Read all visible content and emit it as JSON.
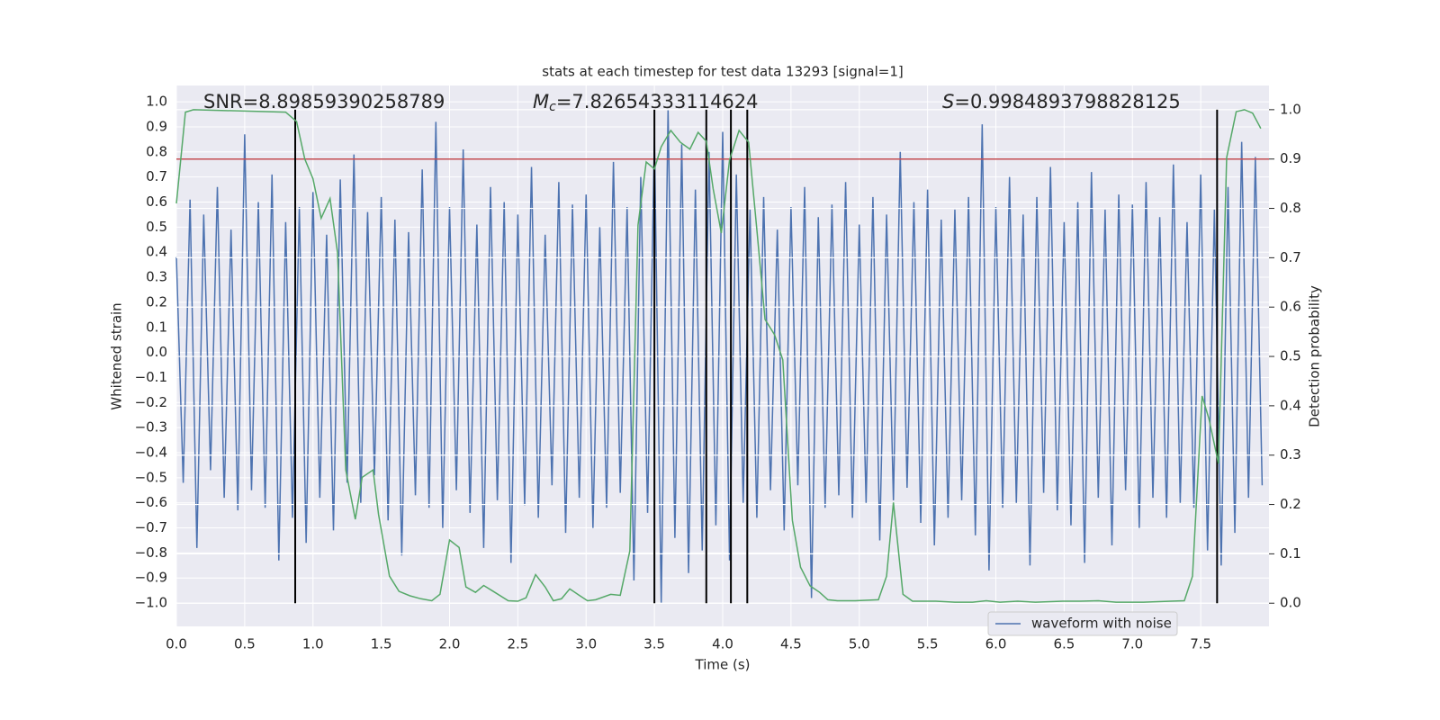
{
  "chart_data": {
    "type": "line",
    "title": "stats at each timestep for test data 13293 [signal=1]",
    "x_label": "Time (s)",
    "y_label": "Whitened strain",
    "y2_label": "Detection probability",
    "annotations": [
      {
        "text": "SNR=8.89859390258789"
      },
      {
        "symbol": "M",
        "subscript": "c",
        "text": "=7.82654333114624"
      },
      {
        "symbol": "S",
        "text": "=0.9984893798828125"
      }
    ],
    "xlim": [
      0,
      8.0
    ],
    "ylim": [
      -1.093,
      1.065
    ],
    "y2lim": [
      -0.047,
      1.049
    ],
    "xticks": [
      {
        "value": 0,
        "label": "0.0"
      },
      0.5,
      {
        "value": 1,
        "label": "1.0"
      },
      1.5,
      {
        "value": 2,
        "label": "2.0"
      },
      2.5,
      {
        "value": 3,
        "label": "3.0"
      },
      3.5,
      {
        "value": 4,
        "label": "4.0"
      },
      4.5,
      {
        "value": 5,
        "label": "5.0"
      },
      5.5,
      {
        "value": 6,
        "label": "6.0"
      },
      6.5,
      {
        "value": 7,
        "label": "7.0"
      },
      7.5
    ],
    "yticks": [
      {
        "value": -1,
        "label": "−1.0"
      },
      {
        "value": -0.9,
        "label": "−0.9"
      },
      {
        "value": -0.8,
        "label": "−0.8"
      },
      {
        "value": -0.7,
        "label": "−0.7"
      },
      {
        "value": -0.6,
        "label": "−0.6"
      },
      {
        "value": -0.5,
        "label": "−0.5"
      },
      {
        "value": -0.4,
        "label": "−0.4"
      },
      {
        "value": -0.3,
        "label": "−0.3"
      },
      {
        "value": -0.2,
        "label": "−0.2"
      },
      {
        "value": -0.1,
        "label": "−0.1"
      },
      {
        "value": 0,
        "label": "0.0"
      },
      0.1,
      0.2,
      0.3,
      0.4,
      0.5,
      0.6,
      0.7,
      0.8,
      0.9,
      {
        "value": 1,
        "label": "1.0"
      }
    ],
    "y2ticks": [
      {
        "value": 0,
        "label": "0.0"
      },
      0.1,
      0.2,
      0.3,
      0.4,
      0.5,
      0.6,
      0.7,
      0.8,
      0.9,
      {
        "value": 1,
        "label": "1.0"
      }
    ],
    "grid": true,
    "legend": "lower right",
    "series": [
      {
        "name": "waveform with noise",
        "color": "#4c72b0",
        "x": [
          0,
          0.05,
          0.1,
          0.15,
          0.2,
          0.25,
          0.3,
          0.35,
          0.4,
          0.45,
          0.5,
          0.55,
          0.6,
          0.65,
          0.7,
          0.75,
          0.8,
          0.85,
          0.9,
          0.95,
          1,
          1.05,
          1.1,
          1.15,
          1.2,
          1.25,
          1.3,
          1.35,
          1.4,
          1.45,
          1.5,
          1.55,
          1.6,
          1.65,
          1.7,
          1.75,
          1.8,
          1.85,
          1.9,
          1.95,
          2,
          2.05,
          2.1,
          2.15,
          2.2,
          2.25,
          2.3,
          2.35,
          2.4,
          2.45,
          2.5,
          2.55,
          2.6,
          2.65,
          2.7,
          2.75,
          2.8,
          2.85,
          2.9,
          2.95,
          3,
          3.05,
          3.1,
          3.15,
          3.2,
          3.25,
          3.3,
          3.35,
          3.4,
          3.45,
          3.5,
          3.55,
          3.6,
          3.65,
          3.7,
          3.75,
          3.8,
          3.85,
          3.9,
          3.95,
          4,
          4.05,
          4.1,
          4.15,
          4.2,
          4.25,
          4.3,
          4.35,
          4.4,
          4.45,
          4.5,
          4.55,
          4.6,
          4.65,
          4.7,
          4.75,
          4.8,
          4.85,
          4.9,
          4.95,
          5,
          5.05,
          5.1,
          5.15,
          5.2,
          5.25,
          5.3,
          5.35,
          5.4,
          5.45,
          5.5,
          5.55,
          5.6,
          5.65,
          5.7,
          5.75,
          5.8,
          5.85,
          5.9,
          5.95,
          6,
          6.05,
          6.1,
          6.15,
          6.2,
          6.25,
          6.3,
          6.35,
          6.4,
          6.45,
          6.5,
          6.55,
          6.6,
          6.65,
          6.7,
          6.75,
          6.8,
          6.85,
          6.9,
          6.95,
          7,
          7.05,
          7.1,
          7.15,
          7.2,
          7.25,
          7.3,
          7.35,
          7.4,
          7.45,
          7.5,
          7.55,
          7.6,
          7.65,
          7.7,
          7.75,
          7.8,
          7.85,
          7.9,
          7.95
        ],
        "values": [
          0.38,
          -0.52,
          0.61,
          -0.78,
          0.55,
          -0.47,
          0.66,
          -0.58,
          0.49,
          -0.63,
          0.87,
          -0.55,
          0.6,
          -0.62,
          0.71,
          -0.83,
          0.52,
          -0.66,
          0.58,
          -0.76,
          0.64,
          -0.58,
          0.47,
          -0.71,
          0.69,
          -0.52,
          0.79,
          -0.6,
          0.56,
          -0.49,
          0.62,
          -0.67,
          0.53,
          -0.81,
          0.48,
          -0.57,
          0.73,
          -0.62,
          0.92,
          -0.7,
          0.58,
          -0.55,
          0.81,
          -0.64,
          0.51,
          -0.78,
          0.66,
          -0.59,
          0.6,
          -0.84,
          0.55,
          -0.61,
          0.74,
          -0.66,
          0.47,
          -0.53,
          0.68,
          -0.72,
          0.59,
          -0.58,
          0.63,
          -0.7,
          0.5,
          -0.62,
          0.76,
          -0.56,
          0.58,
          -0.91,
          0.7,
          -0.64,
          0.86,
          -1.0,
          0.97,
          -0.74,
          0.83,
          -0.88,
          0.65,
          -0.79,
          0.8,
          -0.69,
          0.88,
          -0.83,
          0.71,
          -0.6,
          0.57,
          -0.66,
          0.62,
          -0.55,
          0.49,
          -0.71,
          0.58,
          -0.53,
          0.66,
          -0.98,
          0.54,
          -0.62,
          0.59,
          -0.57,
          0.68,
          -0.66,
          0.51,
          -0.6,
          0.62,
          -0.75,
          0.55,
          -0.59,
          0.8,
          -0.54,
          0.6,
          -0.68,
          0.65,
          -0.77,
          0.53,
          -0.66,
          0.57,
          -0.59,
          0.62,
          -0.73,
          0.91,
          -0.87,
          0.58,
          -0.62,
          0.7,
          -0.6,
          0.55,
          -0.85,
          0.62,
          -0.56,
          0.74,
          -0.63,
          0.52,
          -0.69,
          0.6,
          -0.84,
          0.72,
          -0.58,
          0.57,
          -0.77,
          0.63,
          -0.55,
          0.59,
          -0.7,
          0.68,
          -0.58,
          0.54,
          -0.66,
          0.75,
          -0.6,
          0.52,
          -0.62,
          0.71,
          -0.79,
          0.57,
          -0.85,
          0.66,
          -0.72,
          0.84,
          -0.58,
          0.78,
          -0.53
        ]
      },
      {
        "color": "#55a868",
        "axis": "y2",
        "x": [
          0,
          0.066,
          0.125,
          0.8,
          0.88,
          0.94,
          1.0,
          1.06,
          1.125,
          1.18,
          1.24,
          1.31,
          1.36,
          1.44,
          1.48,
          1.56,
          1.63,
          1.71,
          1.79,
          1.87,
          1.93,
          2.0,
          2.07,
          2.12,
          2.19,
          2.25,
          2.32,
          2.43,
          2.5,
          2.56,
          2.63,
          2.7,
          2.76,
          2.82,
          2.88,
          2.95,
          3.01,
          3.07,
          3.18,
          3.25,
          3.32,
          3.38,
          3.44,
          3.5,
          3.55,
          3.62,
          3.69,
          3.76,
          3.82,
          3.88,
          3.93,
          3.99,
          4.05,
          4.12,
          4.19,
          4.25,
          4.31,
          4.38,
          4.44,
          4.51,
          4.57,
          4.64,
          4.71,
          4.77,
          4.84,
          4.97,
          5.14,
          5.2,
          5.25,
          5.32,
          5.39,
          5.56,
          5.7,
          5.83,
          5.93,
          6.03,
          6.16,
          6.29,
          6.49,
          6.62,
          6.75,
          6.88,
          7.08,
          7.28,
          7.38,
          7.44,
          7.51,
          7.56,
          7.63,
          7.69,
          7.76,
          7.82,
          7.88,
          7.94
        ],
        "values": [
          0.81,
          0.995,
          1.0,
          0.995,
          0.976,
          0.9,
          0.86,
          0.78,
          0.82,
          0.71,
          0.27,
          0.17,
          0.255,
          0.27,
          0.18,
          0.055,
          0.024,
          0.015,
          0.009,
          0.005,
          0.018,
          0.128,
          0.113,
          0.033,
          0.022,
          0.036,
          0.024,
          0.005,
          0.004,
          0.011,
          0.058,
          0.033,
          0.005,
          0.009,
          0.029,
          0.016,
          0.005,
          0.007,
          0.018,
          0.016,
          0.106,
          0.766,
          0.894,
          0.88,
          0.925,
          0.958,
          0.934,
          0.92,
          0.954,
          0.936,
          0.84,
          0.75,
          0.898,
          0.958,
          0.934,
          0.757,
          0.575,
          0.544,
          0.493,
          0.168,
          0.073,
          0.035,
          0.022,
          0.007,
          0.005,
          0.005,
          0.007,
          0.055,
          0.204,
          0.018,
          0.004,
          0.004,
          0.002,
          0.002,
          0.005,
          0.002,
          0.004,
          0.002,
          0.004,
          0.004,
          0.005,
          0.002,
          0.002,
          0.004,
          0.005,
          0.055,
          0.42,
          0.374,
          0.283,
          0.903,
          0.996,
          1.0,
          0.993,
          0.962
        ]
      }
    ],
    "vlines": {
      "color": "#000000",
      "x": [
        0.87,
        3.5,
        3.88,
        4.06,
        4.18,
        7.62
      ]
    },
    "threshold": {
      "value": 0.9,
      "axis": "y2",
      "color": "#c44e52"
    }
  }
}
